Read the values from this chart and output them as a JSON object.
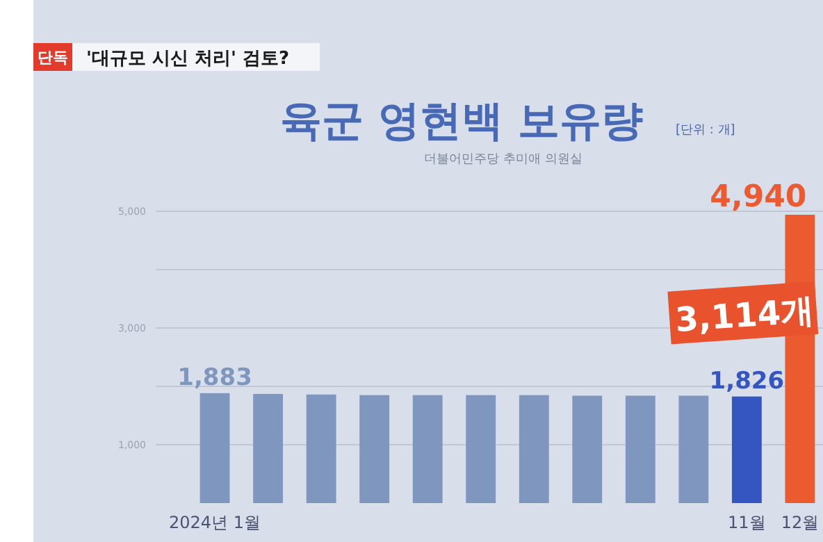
{
  "chart_data": {
    "type": "bar",
    "title": "육군 영현백 보유량",
    "subtitle": "더불어민주당 추미애 의원실",
    "annotations": [
      "단독",
      "'대규모 시신 처리' 검토?",
      "[단위 : 개]",
      "3,114개"
    ],
    "categories": [
      "2024년 1월",
      null,
      null,
      null,
      null,
      null,
      null,
      null,
      null,
      null,
      "11월",
      "12월"
    ],
    "values": [
      1883,
      1870,
      1860,
      1850,
      1850,
      1850,
      1850,
      1840,
      1840,
      1840,
      1826,
      4940
    ],
    "colors": [
      "#7f97bf",
      "#7f97bf",
      "#7f97bf",
      "#7f97bf",
      "#7f97bf",
      "#7f97bf",
      "#7f97bf",
      "#7f97bf",
      "#7f97bf",
      "#7f97bf",
      "#3556c0",
      "#ec5a2f"
    ],
    "value_labels": [
      "1,883",
      null,
      null,
      null,
      null,
      null,
      null,
      null,
      null,
      null,
      "1,826",
      "4,940"
    ],
    "ylim": [
      0,
      5000
    ],
    "yticks": [
      {
        "value": 1000,
        "label": "1,000"
      },
      {
        "value": 2000,
        "label": null
      },
      {
        "value": 3000,
        "label": "3,000"
      },
      {
        "value": 4000,
        "label": null
      },
      {
        "value": 5000,
        "label": "5,000"
      }
    ],
    "grid": true
  }
}
